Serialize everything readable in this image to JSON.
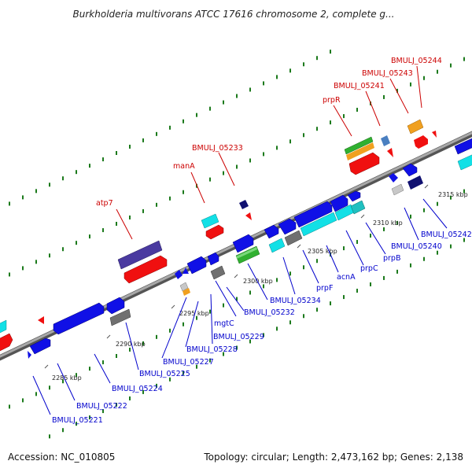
{
  "title": "Burkholderia multivorans ATCC 17616 chromosome 2, complete g...",
  "footer": {
    "accession": "Accession: NC_010805",
    "summary": "Topology: circular; Length: 2,473,162 bp; Genes: 2,138"
  },
  "ticks": [
    "2285 kbp",
    "2290 kbp",
    "2295 kbp",
    "2300 kbp",
    "2305 kbp",
    "2310 kbp",
    "2315 kbp"
  ],
  "colors": {
    "backbone": "#8a8a8a",
    "ticks": "#1c7a1c",
    "label_top": "#cc0000",
    "label_bottom": "#0000cc",
    "leader_top": "#cc0000",
    "leader_bottom": "#0000cc",
    "blue": "#1010e6",
    "red": "#f01010",
    "cyan": "#12e0e6",
    "green": "#30b030",
    "gray": "#707070",
    "orange": "#f0a020",
    "purple": "#4a3aa0",
    "navy": "#101070",
    "steelblue": "#4a7fc0",
    "lightgray": "#c8c8c8",
    "teal": "#20c0c0"
  },
  "labels_top": [
    "atp7",
    "manA",
    "BMULJ_05233",
    "prpR",
    "BMULJ_05241",
    "BMULJ_05243",
    "BMULJ_05244"
  ],
  "labels_bottom": [
    "BMULJ_05221",
    "BMULJ_05222",
    "BMULJ_05224",
    "BMULJ_05225",
    "BMULJ_05227",
    "BMULJ_05228",
    "mgtC",
    "BMULJ_05229",
    "BMULJ_05232",
    "BMULJ_05234",
    "prpF",
    "acnA",
    "prpC",
    "prpB",
    "BMULJ_05240",
    "BMULJ_05242"
  ]
}
